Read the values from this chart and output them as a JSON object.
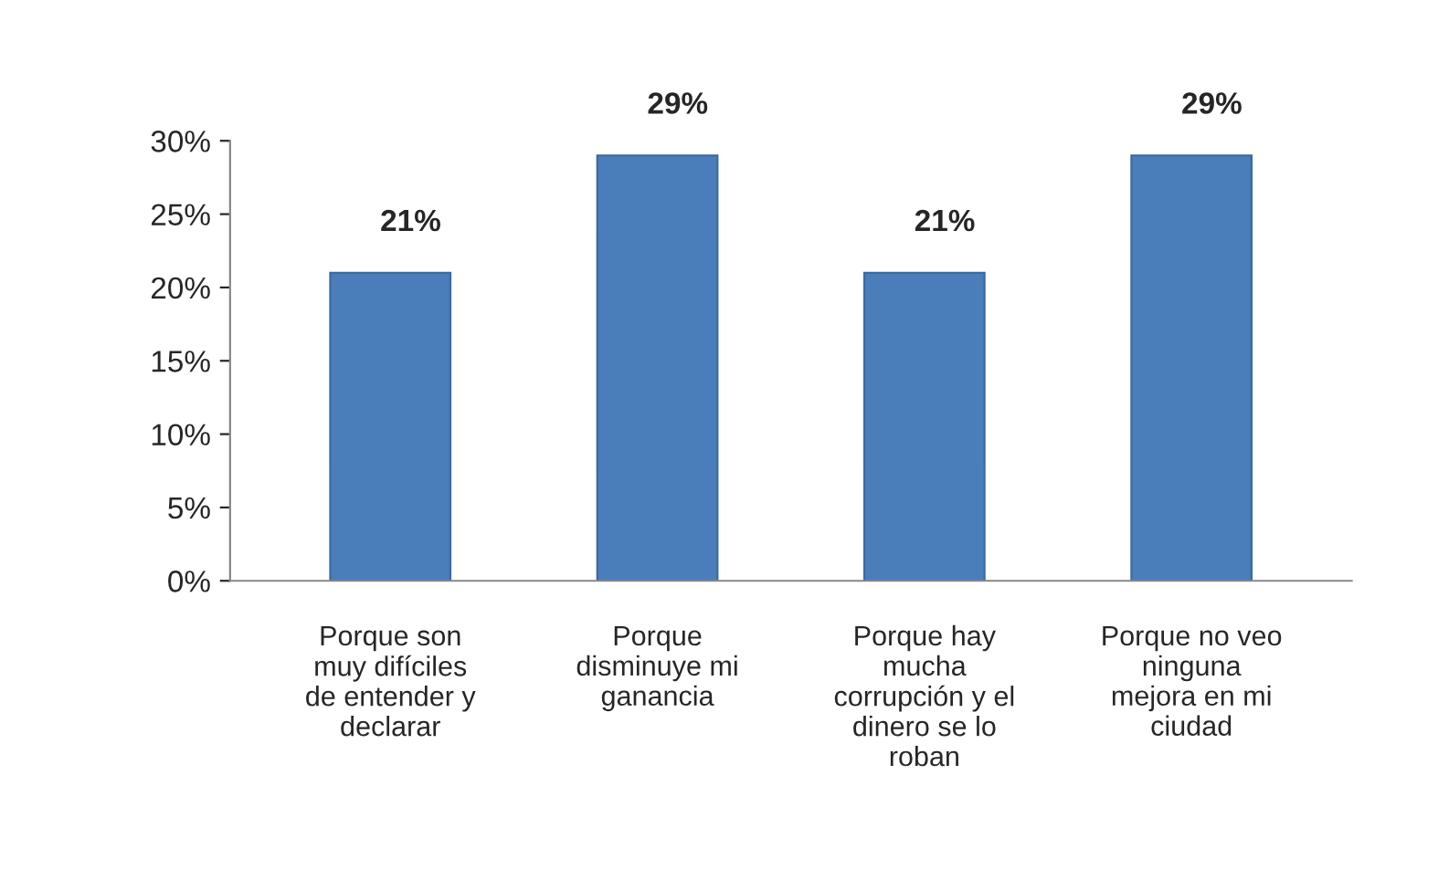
{
  "chart_data": {
    "type": "bar",
    "categories": [
      "Porque son\nmuy difíciles\nde entender y\ndeclarar",
      "Porque\ndisminuye mi\nganancia",
      "Porque hay\nmucha\ncorrupción y el\ndinero se lo\nroban",
      "Porque no veo\nninguna\nmejora en mi\nciudad"
    ],
    "values": [
      21,
      29,
      21,
      29
    ],
    "value_labels": [
      "21%",
      "29%",
      "21%",
      "29%"
    ],
    "color": "#4a7ebb",
    "ylim": [
      0,
      30
    ],
    "yticks": [
      {
        "value": 0,
        "label": "0%"
      },
      {
        "value": 5,
        "label": "5%"
      },
      {
        "value": 10,
        "label": "10%"
      },
      {
        "value": 15,
        "label": "15%"
      },
      {
        "value": 20,
        "label": "20%"
      },
      {
        "value": 25,
        "label": "25%"
      },
      {
        "value": 30,
        "label": "30%"
      }
    ],
    "grid": false,
    "legend": false
  }
}
